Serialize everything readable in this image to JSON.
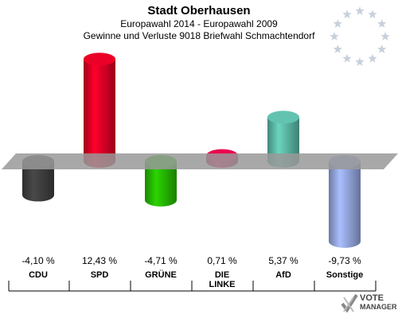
{
  "header": {
    "title": "Stadt Oberhausen",
    "subtitle1": "Europawahl 2014 - Europawahl 2009",
    "subtitle2": "Gewinne und Verluste 9018 Briefwahl Schmachtendorf"
  },
  "logo": {
    "line1": "VOTE",
    "line2": "MANAGER"
  },
  "colors": {
    "baseline": "#999999",
    "text": "#000000"
  },
  "chart_data": {
    "type": "bar",
    "title": "Stadt Oberhausen",
    "categories": [
      "CDU",
      "SPD",
      "GRÜNE",
      "DIE LINKE",
      "AfD",
      "Sonstige"
    ],
    "values": [
      -4.1,
      12.43,
      -4.71,
      0.71,
      5.37,
      -9.73
    ],
    "value_labels": [
      "-4,10 %",
      "12,43 %",
      "-4,71 %",
      "0,71 %",
      "5,37 %",
      "-9,73 %"
    ],
    "colors": [
      "#3a3a3a",
      "#cc0022",
      "#22aa00",
      "#cc0044",
      "#55aa99",
      "#8899cc"
    ],
    "ylim": [
      -10,
      12.5
    ]
  }
}
